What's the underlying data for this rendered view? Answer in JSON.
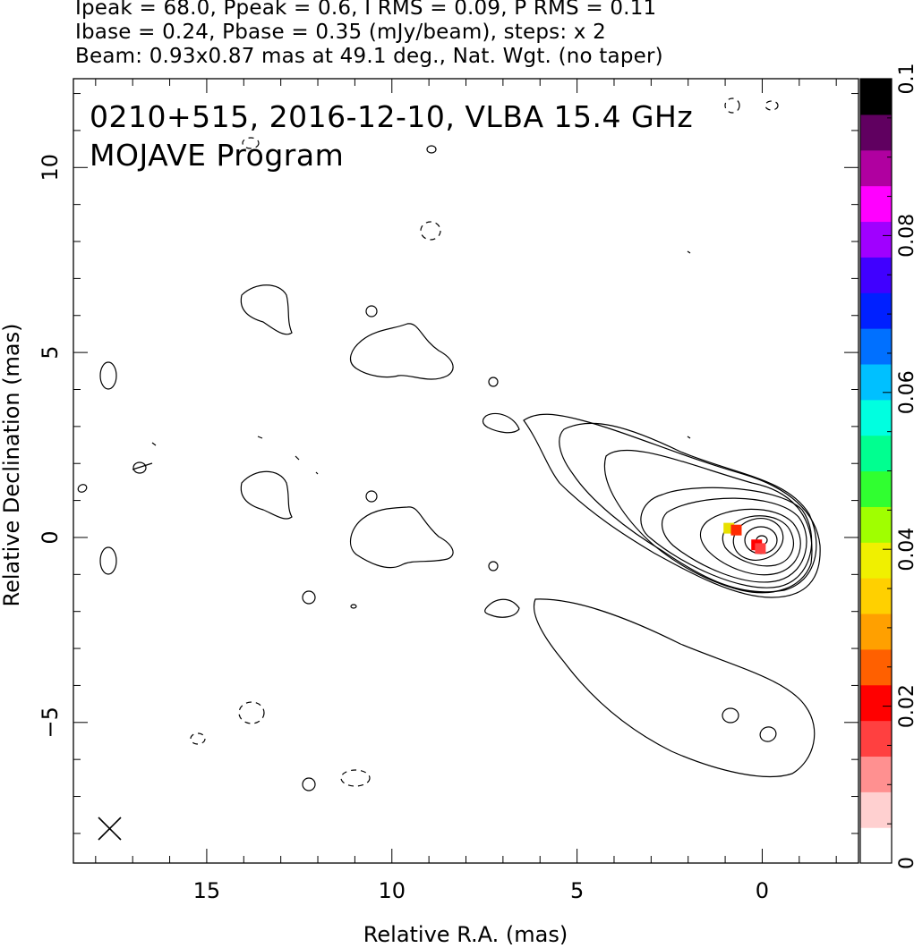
{
  "header": {
    "line1": "Ipeak = 68.0, Ppeak = 0.6, I RMS = 0.09, P RMS = 0.11",
    "line2": "Ibase = 0.24, Pbase = 0.35 (mJy/beam), steps: x 2",
    "line3": "Beam: 0.93x0.87 mas at 49.1 deg., Nat. Wgt. (no taper)"
  },
  "chart_data": {
    "type": "contour",
    "title": "0210+515, 2016-12-10, VLBA 15.4 GHz",
    "subtitle": "MOJAVE Program",
    "xlabel": "Relative R.A. (mas)",
    "ylabel": "Relative Declination (mas)",
    "xlim": [
      18.6,
      -2.6
    ],
    "ylim": [
      -8.8,
      12.4
    ],
    "xticks": [
      15,
      10,
      5,
      0
    ],
    "yticks": [
      -5,
      0,
      5,
      10
    ],
    "core": {
      "x": 0,
      "y": 0
    },
    "contour_levels_mJy_per_beam": [
      0.24,
      0.48,
      0.96,
      1.92,
      3.84,
      7.68,
      15.36,
      30.72,
      61.44
    ],
    "beam": {
      "major_mas": 0.93,
      "minor_mas": 0.87,
      "pa_deg": 49.1
    },
    "polarization_pixels": [
      {
        "x": 0.9,
        "y": 0.25,
        "color": "#e8e000"
      },
      {
        "x": 0.7,
        "y": 0.2,
        "color": "#ff2a00"
      },
      {
        "x": 0.15,
        "y": -0.2,
        "color": "#ff0000"
      },
      {
        "x": 0.05,
        "y": -0.3,
        "color": "#ff4040"
      }
    ],
    "colorbar": {
      "min": 0,
      "max": 0.1,
      "ticks": [
        0,
        0.02,
        0.04,
        0.06,
        0.08,
        0.1
      ],
      "tick_labels": [
        "0",
        "0.02",
        "0.04",
        "0.06",
        "0.08",
        "0.1"
      ],
      "colors": [
        "#ffffff",
        "#ffd0d0",
        "#ff9090",
        "#ff4040",
        "#ff0000",
        "#ff6000",
        "#ffa000",
        "#ffd000",
        "#f0f000",
        "#a0ff00",
        "#30ff30",
        "#00ff90",
        "#00ffe0",
        "#00c0ff",
        "#0070ff",
        "#0020ff",
        "#4000ff",
        "#a000ff",
        "#ff00ff",
        "#b000a0",
        "#600060",
        "#000000"
      ]
    }
  }
}
